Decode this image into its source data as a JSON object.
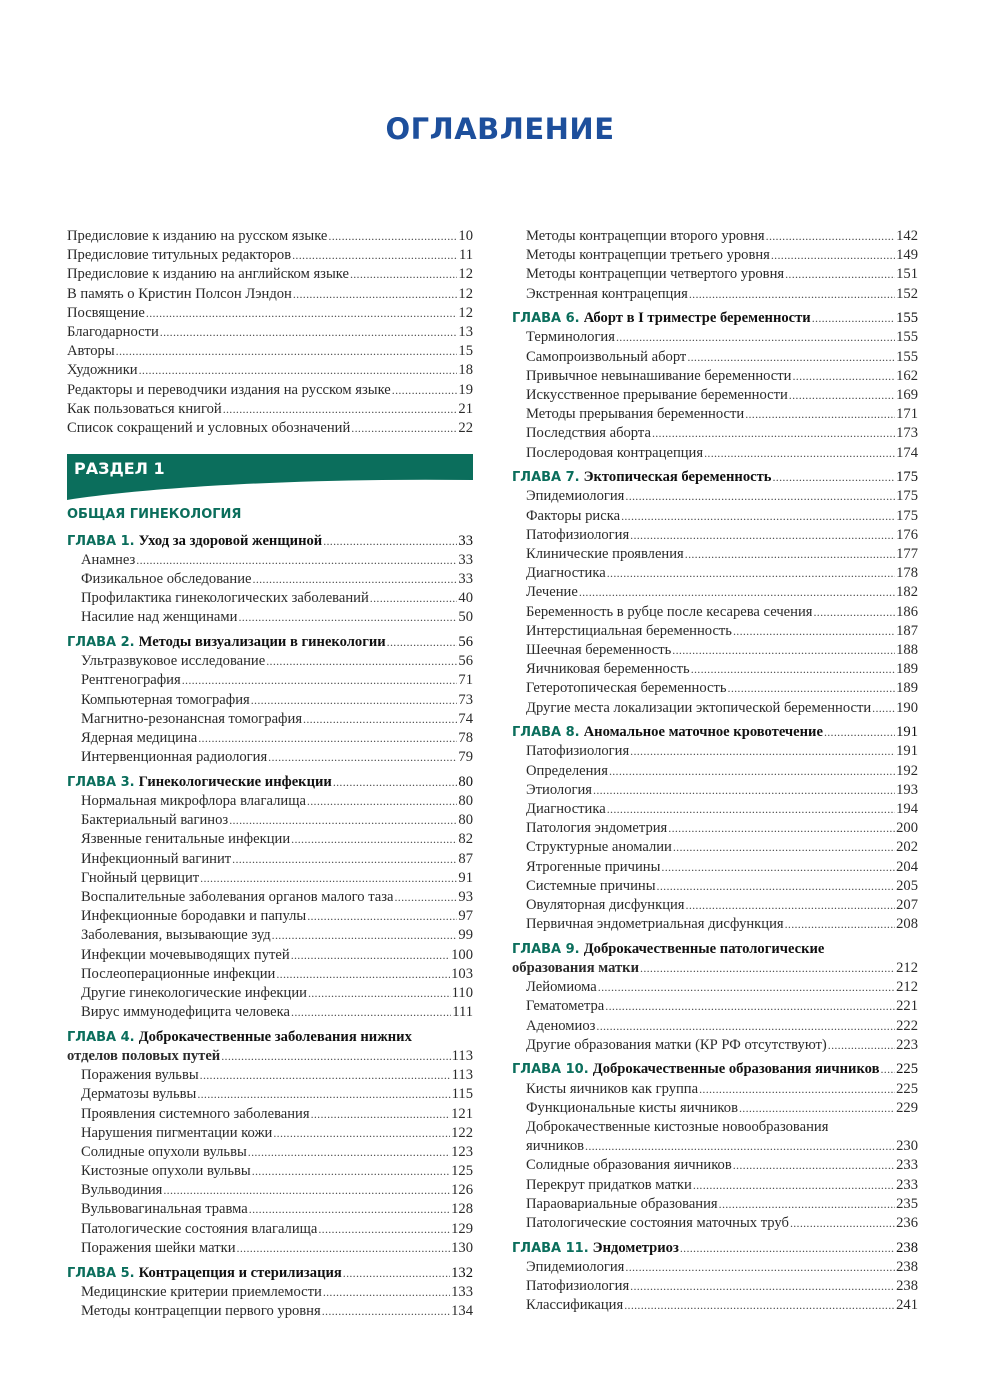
{
  "page_title": "ОГЛАВЛЕНИЕ",
  "colors": {
    "title": "#1d4f9c",
    "accent": "#0b6e5c"
  },
  "left": [
    {
      "type": "entry",
      "text": "Предисловие к изданию на русском языке",
      "page": "10",
      "indent": false
    },
    {
      "type": "entry",
      "text": "Предисловие титульных редакторов",
      "page": "11",
      "indent": false
    },
    {
      "type": "entry",
      "text": "Предисловие к изданию на английском языке",
      "page": "12",
      "indent": false
    },
    {
      "type": "entry",
      "text": "В память о Кристин Полсон Лэндон",
      "page": "12",
      "indent": false
    },
    {
      "type": "entry",
      "text": "Посвящение",
      "page": "12",
      "indent": false
    },
    {
      "type": "entry",
      "text": "Благодарности",
      "page": "13",
      "indent": false
    },
    {
      "type": "entry",
      "text": "Авторы",
      "page": "15",
      "indent": false
    },
    {
      "type": "entry",
      "text": "Художники",
      "page": "18",
      "indent": false
    },
    {
      "type": "entry",
      "text": "Редакторы и переводчики издания на русском языке",
      "page": "19",
      "indent": false
    },
    {
      "type": "entry",
      "text": "Как пользоваться книгой",
      "page": "21",
      "indent": false
    },
    {
      "type": "entry",
      "text": "Список сокращений и условных обозначений",
      "page": "22",
      "indent": false
    },
    {
      "type": "section",
      "text": "РАЗДЕЛ 1"
    },
    {
      "type": "subsection",
      "text": "ОБЩАЯ ГИНЕКОЛОГИЯ"
    },
    {
      "type": "chapter",
      "label": "ГЛАВА 1.",
      "text": "Уход за здоровой женщиной",
      "page": "33"
    },
    {
      "type": "entry",
      "text": "Анамнез",
      "page": "33"
    },
    {
      "type": "entry",
      "text": "Физикальное обследование",
      "page": "33"
    },
    {
      "type": "entry",
      "text": "Профилактика гинекологических заболеваний",
      "page": "40"
    },
    {
      "type": "entry",
      "text": "Насилие над женщинами",
      "page": "50"
    },
    {
      "type": "chapter",
      "label": "ГЛАВА 2.",
      "text": "Методы визуализации в гинекологии",
      "page": "56"
    },
    {
      "type": "entry",
      "text": "Ультразвуковое исследование",
      "page": "56"
    },
    {
      "type": "entry",
      "text": "Рентгенография",
      "page": "71"
    },
    {
      "type": "entry",
      "text": "Компьютерная томография",
      "page": "73"
    },
    {
      "type": "entry",
      "text": "Магнитно-резонансная томография",
      "page": "74"
    },
    {
      "type": "entry",
      "text": "Ядерная медицина",
      "page": "78"
    },
    {
      "type": "entry",
      "text": "Интервенционная радиология",
      "page": "79"
    },
    {
      "type": "chapter",
      "label": "ГЛАВА 3.",
      "text": "Гинекологические инфекции",
      "page": "80"
    },
    {
      "type": "entry",
      "text": "Нормальная микрофлора влагалища",
      "page": "80"
    },
    {
      "type": "entry",
      "text": "Бактериальный вагиноз",
      "page": "80"
    },
    {
      "type": "entry",
      "text": "Язвенные генитальные инфекции",
      "page": "82"
    },
    {
      "type": "entry",
      "text": "Инфекционный вагинит",
      "page": "87"
    },
    {
      "type": "entry",
      "text": "Гнойный цервицит",
      "page": "91"
    },
    {
      "type": "entry",
      "text": "Воспалительные заболевания органов малого таза",
      "page": "93"
    },
    {
      "type": "entry",
      "text": "Инфекционные бородавки и папулы",
      "page": "97"
    },
    {
      "type": "entry",
      "text": "Заболевания, вызывающие зуд",
      "page": "99"
    },
    {
      "type": "entry",
      "text": "Инфекции мочевыводящих путей",
      "page": "100"
    },
    {
      "type": "entry",
      "text": "Послеоперационные инфекции",
      "page": "103"
    },
    {
      "type": "entry",
      "text": "Другие гинекологические инфекции",
      "page": "110"
    },
    {
      "type": "entry",
      "text": "Вирус иммунодефицита человека",
      "page": "111"
    },
    {
      "type": "chapter",
      "label": "ГЛАВА 4.",
      "text": "Доброкачественные заболевания нижних",
      "cont": "отделов половых путей",
      "page": "113"
    },
    {
      "type": "entry",
      "text": "Поражения вульвы",
      "page": "113"
    },
    {
      "type": "entry",
      "text": "Дерматозы вульвы",
      "page": "115"
    },
    {
      "type": "entry",
      "text": "Проявления системного заболевания",
      "page": "121"
    },
    {
      "type": "entry",
      "text": "Нарушения пигментации кожи",
      "page": "122"
    },
    {
      "type": "entry",
      "text": "Солидные опухоли вульвы",
      "page": "123"
    },
    {
      "type": "entry",
      "text": "Кистозные опухоли вульвы",
      "page": "125"
    },
    {
      "type": "entry",
      "text": "Вульводиния",
      "page": "126"
    },
    {
      "type": "entry",
      "text": "Вульвовагинальная травма",
      "page": "128"
    },
    {
      "type": "entry",
      "text": "Патологические состояния влагалища",
      "page": "129"
    },
    {
      "type": "entry",
      "text": "Поражения шейки матки",
      "page": "130"
    },
    {
      "type": "chapter",
      "label": "ГЛАВА 5.",
      "text": "Контрацепция и стерилизация",
      "page": "132"
    },
    {
      "type": "entry",
      "text": "Медицинские критерии приемлемости",
      "page": "133"
    },
    {
      "type": "entry",
      "text": "Методы контрацепции первого уровня",
      "page": "134"
    }
  ],
  "right": [
    {
      "type": "entry",
      "text": "Методы контрацепции второго уровня",
      "page": "142"
    },
    {
      "type": "entry",
      "text": "Методы контрацепции третьего уровня",
      "page": "149"
    },
    {
      "type": "entry",
      "text": "Методы контрацепции четвертого уровня",
      "page": "151"
    },
    {
      "type": "entry",
      "text": "Экстренная контрацепция",
      "page": "152"
    },
    {
      "type": "chapter",
      "label": "ГЛАВА 6.",
      "text": "Аборт в I триместре беременности",
      "page": "155"
    },
    {
      "type": "entry",
      "text": "Терминология",
      "page": "155"
    },
    {
      "type": "entry",
      "text": "Самопроизвольный аборт",
      "page": "155"
    },
    {
      "type": "entry",
      "text": "Привычное невынашивание беременности",
      "page": "162"
    },
    {
      "type": "entry",
      "text": "Искусственное прерывание беременности",
      "page": "169"
    },
    {
      "type": "entry",
      "text": "Методы прерывания беременности",
      "page": "171"
    },
    {
      "type": "entry",
      "text": "Последствия аборта",
      "page": "173"
    },
    {
      "type": "entry",
      "text": "Послеродовая контрацепция",
      "page": "174"
    },
    {
      "type": "chapter",
      "label": "ГЛАВА 7.",
      "text": "Эктопическая беременность",
      "page": "175"
    },
    {
      "type": "entry",
      "text": "Эпидемиология",
      "page": "175"
    },
    {
      "type": "entry",
      "text": "Факторы риска",
      "page": "175"
    },
    {
      "type": "entry",
      "text": "Патофизиология",
      "page": "176"
    },
    {
      "type": "entry",
      "text": "Клинические проявления",
      "page": "177"
    },
    {
      "type": "entry",
      "text": "Диагностика",
      "page": "178"
    },
    {
      "type": "entry",
      "text": "Лечение",
      "page": "182"
    },
    {
      "type": "entry",
      "text": "Беременность в рубце после кесарева сечения",
      "page": "186"
    },
    {
      "type": "entry",
      "text": "Интерстициальная беременность",
      "page": "187"
    },
    {
      "type": "entry",
      "text": "Шеечная беременность",
      "page": "188"
    },
    {
      "type": "entry",
      "text": "Яичниковая беременность",
      "page": "189"
    },
    {
      "type": "entry",
      "text": "Гетеротопическая беременность",
      "page": "189"
    },
    {
      "type": "entry",
      "text": "Другие места локализации эктопической беременности",
      "page": "190"
    },
    {
      "type": "chapter",
      "label": "ГЛАВА 8.",
      "text": "Аномальное маточное кровотечение",
      "page": "191"
    },
    {
      "type": "entry",
      "text": "Патофизиология",
      "page": "191"
    },
    {
      "type": "entry",
      "text": "Определения",
      "page": "192"
    },
    {
      "type": "entry",
      "text": "Этиология",
      "page": "193"
    },
    {
      "type": "entry",
      "text": "Диагностика",
      "page": "194"
    },
    {
      "type": "entry",
      "text": "Патология эндометрия",
      "page": "200"
    },
    {
      "type": "entry",
      "text": "Структурные аномалии",
      "page": "202"
    },
    {
      "type": "entry",
      "text": "Ятрогенные причины",
      "page": "204"
    },
    {
      "type": "entry",
      "text": "Системные причины",
      "page": "205"
    },
    {
      "type": "entry",
      "text": "Овуляторная дисфункция",
      "page": "207"
    },
    {
      "type": "entry",
      "text": "Первичная эндометриальная дисфункция",
      "page": "208"
    },
    {
      "type": "chapter",
      "label": "ГЛАВА 9.",
      "text": "Доброкачественные патологические",
      "cont": "образования матки",
      "page": "212"
    },
    {
      "type": "entry",
      "text": "Лейомиома",
      "page": "212"
    },
    {
      "type": "entry",
      "text": "Гематометра",
      "page": "221"
    },
    {
      "type": "entry",
      "text": "Аденомиоз",
      "page": "222"
    },
    {
      "type": "entry",
      "text": "Другие образования матки (КР РФ отсутствуют)",
      "page": "223"
    },
    {
      "type": "chapter",
      "label": "ГЛАВА 10.",
      "text": "Доброкачественные образования яичников",
      "page": "225"
    },
    {
      "type": "entry",
      "text": "Кисты яичников как группа",
      "page": "225"
    },
    {
      "type": "entry",
      "text": "Функциональные кисты яичников",
      "page": "229"
    },
    {
      "type": "entry",
      "text": "Доброкачественные кистозные новообразования",
      "cont": "яичников",
      "page": "230"
    },
    {
      "type": "entry",
      "text": "Солидные образования яичников",
      "page": "233"
    },
    {
      "type": "entry",
      "text": "Перекрут придатков матки",
      "page": "233"
    },
    {
      "type": "entry",
      "text": "Параовариальные образования",
      "page": "235"
    },
    {
      "type": "entry",
      "text": "Патологические состояния маточных труб",
      "page": "236"
    },
    {
      "type": "chapter",
      "label": "ГЛАВА 11.",
      "text": "Эндометриоз",
      "page": "238"
    },
    {
      "type": "entry",
      "text": "Эпидемиология",
      "page": "238"
    },
    {
      "type": "entry",
      "text": "Патофизиология",
      "page": "238"
    },
    {
      "type": "entry",
      "text": "Классификация",
      "page": "241"
    }
  ]
}
